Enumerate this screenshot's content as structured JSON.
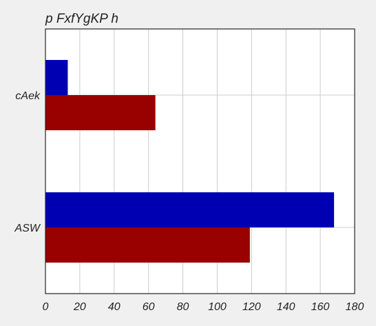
{
  "chart_data": {
    "type": "bar",
    "orientation": "horizontal",
    "title": "p FxfYgKP h",
    "xlabel": "",
    "ylabel": "",
    "categories": [
      "ASW",
      "cAek"
    ],
    "series": [
      {
        "values": [
          119,
          64
        ],
        "color": "#990000"
      },
      {
        "values": [
          168,
          13
        ],
        "color": "#0000b3"
      }
    ],
    "xlim": [
      0,
      180
    ],
    "xticks": [
      0,
      20,
      40,
      60,
      80,
      100,
      120,
      140,
      160,
      180
    ],
    "grid": true
  }
}
